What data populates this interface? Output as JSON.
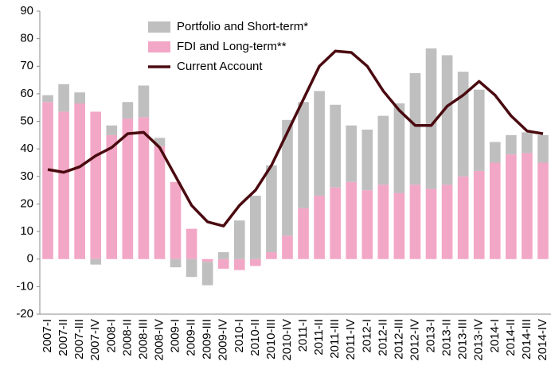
{
  "chart_data": {
    "type": "bar",
    "categories": [
      "2007-I",
      "2007-II",
      "2007-III",
      "2007-IV",
      "2008-I",
      "2008-II",
      "2008-III",
      "2008-IV",
      "2009-I",
      "2009-II",
      "2009-III",
      "2009-IV",
      "2010-I",
      "2010-II",
      "2010-III",
      "2010-IV",
      "2011-I",
      "2011-II",
      "2011-III",
      "2011-IV",
      "2012-I",
      "2012-II",
      "2012-III",
      "2012-IV",
      "2013-I",
      "2013-II",
      "2013-III",
      "2013-IV",
      "2014-I",
      "2014-II",
      "2014-III",
      "2014-IV"
    ],
    "series": [
      {
        "name": "Portfolio and Short-term*",
        "color": "#bfbfbf",
        "kind": "bar",
        "values": [
          2.5,
          10,
          4,
          -2,
          3.5,
          6,
          11.5,
          3,
          -3,
          -6.5,
          -8.5,
          2.5,
          14,
          23,
          31.5,
          42,
          38.5,
          38,
          30,
          20.5,
          22,
          25,
          32.5,
          40.5,
          51,
          47,
          38,
          29.5,
          7.5,
          7,
          7.5,
          10
        ]
      },
      {
        "name": "FDI and Long-term**",
        "color": "#f2a7c6",
        "kind": "bar",
        "values": [
          57,
          53.5,
          56.5,
          53.5,
          45,
          51,
          51.5,
          41,
          28,
          11,
          -1,
          -3.5,
          -4,
          -2.5,
          2.5,
          8.5,
          18.5,
          23,
          26,
          28,
          25,
          27,
          24,
          27,
          25.5,
          27,
          30,
          32,
          35,
          38,
          38.5,
          35
        ]
      },
      {
        "name": "Current Account",
        "color": "#4a0a10",
        "kind": "line",
        "values": [
          32.5,
          31.5,
          33.5,
          37.5,
          40.5,
          45.5,
          46,
          40.5,
          30,
          19.5,
          13.5,
          12,
          19.5,
          25,
          34,
          46,
          58,
          70,
          75.5,
          75,
          70,
          61,
          54,
          48.5,
          48.5,
          55.5,
          59.5,
          64.5,
          59.5,
          52,
          46.5,
          45.5
        ]
      }
    ],
    "ylim": [
      -20,
      90
    ],
    "yticks": [
      -20,
      -10,
      0,
      10,
      20,
      30,
      40,
      50,
      60,
      70,
      80,
      90
    ],
    "grid": false
  }
}
